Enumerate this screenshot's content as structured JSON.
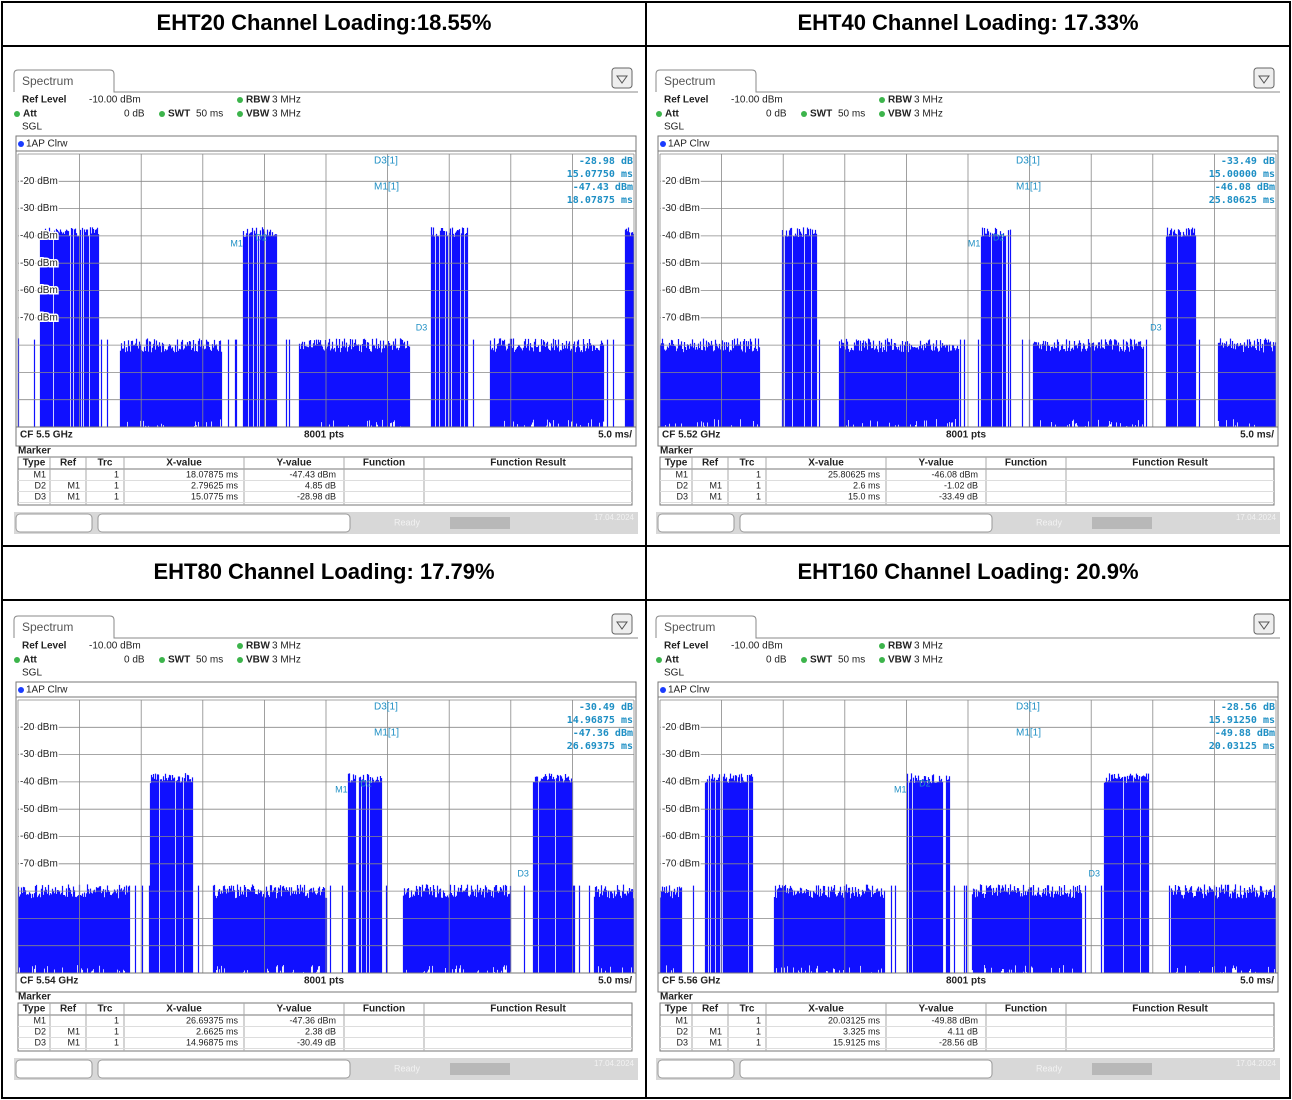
{
  "common": {
    "tab": "Spectrum",
    "ref_level_label": "Ref Level",
    "ref_level": "-10.00 dBm",
    "att_label": "Att",
    "att": "0 dB",
    "swt_label": "SWT",
    "swt": "50 ms",
    "rbw_label": "RBW",
    "rbw": "3 MHz",
    "vbw_label": "VBW",
    "vbw": "3 MHz",
    "mode": "SGL",
    "trace": "1AP Clrw",
    "y_labels": [
      "-20 dBm",
      "-30 dBm",
      "-40 dBm",
      "-50 dBm",
      "-60 dBm",
      "-70 dBm"
    ],
    "d3_label": "D3[1]",
    "m1_label": "M1[1]",
    "plot_markers": [
      "M1",
      "D2",
      "D3"
    ],
    "pts": "8001 pts",
    "span": "5.0 ms/",
    "marker_title": "Marker",
    "headers": [
      "Type",
      "Ref",
      "Trc",
      "X-value",
      "Y-value",
      "Function",
      "Function Result"
    ],
    "status": "Ready",
    "date": "17.04.2024"
  },
  "panels": [
    {
      "title": "EHT20 Channel Loading:18.55%",
      "cf": "CF 5.5 GHz",
      "d3_y": "-28.98 dB",
      "d3_x": "15.07750 ms",
      "m1_y": "-47.43 dBm",
      "m1_x": "18.07875 ms",
      "rows": [
        {
          "type": "M1",
          "trc": "1",
          "x": "18.07875 ms",
          "y": "-47.43 dBm"
        },
        {
          "type": "D2",
          "ref": "M1",
          "trc": "1",
          "x": "2.79625 ms",
          "y": "4.85 dB"
        },
        {
          "type": "D3",
          "ref": "M1",
          "trc": "1",
          "x": "15.0775 ms",
          "y": "-28.98 dB"
        }
      ]
    },
    {
      "title": "EHT40 Channel Loading: 17.33%",
      "cf": "CF 5.52 GHz",
      "d3_y": "-33.49 dB",
      "d3_x": "15.00000 ms",
      "m1_y": "-46.08 dBm",
      "m1_x": "25.80625 ms",
      "rows": [
        {
          "type": "M1",
          "trc": "1",
          "x": "25.80625 ms",
          "y": "-46.08 dBm"
        },
        {
          "type": "D2",
          "ref": "M1",
          "trc": "1",
          "x": "2.6 ms",
          "y": "-1.02 dB"
        },
        {
          "type": "D3",
          "ref": "M1",
          "trc": "1",
          "x": "15.0 ms",
          "y": "-33.49 dB"
        }
      ]
    },
    {
      "title": "EHT80 Channel Loading: 17.79%",
      "cf": "CF 5.54 GHz",
      "d3_y": "-30.49 dB",
      "d3_x": "14.96875 ms",
      "m1_y": "-47.36 dBm",
      "m1_x": "26.69375 ms",
      "rows": [
        {
          "type": "M1",
          "trc": "1",
          "x": "26.69375 ms",
          "y": "-47.36 dBm"
        },
        {
          "type": "D2",
          "ref": "M1",
          "trc": "1",
          "x": "2.6625 ms",
          "y": "2.38 dB"
        },
        {
          "type": "D3",
          "ref": "M1",
          "trc": "1",
          "x": "14.96875 ms",
          "y": "-30.49 dB"
        }
      ]
    },
    {
      "title": "EHT160 Channel Loading: 20.9%",
      "cf": "CF 5.56 GHz",
      "d3_y": "-28.56 dB",
      "d3_x": "15.91250 ms",
      "m1_y": "-49.88 dBm",
      "m1_x": "20.03125 ms",
      "rows": [
        {
          "type": "M1",
          "trc": "1",
          "x": "20.03125 ms",
          "y": "-49.88 dBm"
        },
        {
          "type": "D2",
          "ref": "M1",
          "trc": "1",
          "x": "3.325 ms",
          "y": "4.11 dB"
        },
        {
          "type": "D3",
          "ref": "M1",
          "trc": "1",
          "x": "15.9125 ms",
          "y": "-28.56 dB"
        }
      ]
    }
  ]
}
